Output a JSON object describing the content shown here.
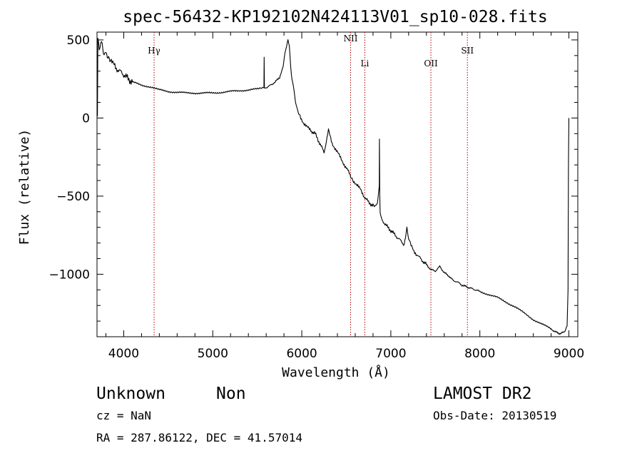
{
  "chart_data": {
    "type": "line",
    "title": "spec-56432-KP192102N424113V01_sp10-028.fits",
    "xlabel": "Wavelength (Å)",
    "ylabel": "Flux (relative)",
    "xlim": [
      3700,
      9100
    ],
    "ylim": [
      -1400,
      550
    ],
    "x_ticks": [
      4000,
      5000,
      6000,
      7000,
      8000,
      9000
    ],
    "x_tick_labels": [
      "4000",
      "5000",
      "6000",
      "7000",
      "8000",
      "9000"
    ],
    "y_ticks": [
      500,
      0,
      -500,
      -1000
    ],
    "y_tick_labels": [
      "500",
      "0",
      "−500",
      "−1000"
    ],
    "grid": false,
    "series": [
      {
        "x": [
          3705,
          3710,
          3725,
          3750,
          3780,
          3800,
          3830,
          3860,
          3900,
          3950,
          4000,
          4050,
          4100,
          4200,
          4300,
          4400,
          4500,
          4600,
          4700,
          4800,
          4900,
          5000,
          5100,
          5200,
          5300,
          5400,
          5500,
          5560,
          5575,
          5577,
          5580,
          5600,
          5650,
          5700,
          5750,
          5790,
          5810,
          5830,
          5845,
          5860,
          5875,
          5890,
          5910,
          5930,
          5950,
          5980,
          6020,
          6060,
          6100,
          6150,
          6200,
          6250,
          6300,
          6340,
          6380,
          6420,
          6460,
          6500,
          6550,
          6580,
          6620,
          6660,
          6700,
          6750,
          6800,
          6830,
          6850,
          6870,
          6872,
          6874,
          6876,
          6880,
          6900,
          6950,
          7000,
          7050,
          7100,
          7150,
          7180,
          7200,
          7220,
          7260,
          7300,
          7350,
          7400,
          7450,
          7500,
          7550,
          7600,
          7650,
          7700,
          7750,
          7800,
          7850,
          7900,
          7950,
          8000,
          8100,
          8200,
          8300,
          8400,
          8500,
          8600,
          8700,
          8800,
          8850,
          8900,
          8950,
          8980,
          8990,
          8995,
          9000
        ],
        "y": [
          -10,
          520,
          430,
          480,
          390,
          410,
          380,
          360,
          330,
          300,
          280,
          250,
          230,
          210,
          200,
          180,
          170,
          165,
          160,
          160,
          160,
          160,
          165,
          170,
          175,
          180,
          185,
          190,
          195,
          390,
          190,
          195,
          210,
          230,
          260,
          330,
          420,
          460,
          500,
          460,
          330,
          240,
          180,
          100,
          50,
          10,
          -30,
          -60,
          -80,
          -100,
          -160,
          -220,
          -80,
          -160,
          -200,
          -240,
          -280,
          -320,
          -370,
          -400,
          -430,
          -460,
          -500,
          -540,
          -560,
          -570,
          -540,
          -440,
          -130,
          -330,
          -510,
          -600,
          -650,
          -690,
          -720,
          -750,
          -780,
          -810,
          -700,
          -780,
          -810,
          -850,
          -880,
          -910,
          -940,
          -970,
          -980,
          -950,
          -990,
          -1010,
          -1040,
          -1050,
          -1070,
          -1080,
          -1090,
          -1100,
          -1110,
          -1130,
          -1150,
          -1180,
          -1210,
          -1250,
          -1290,
          -1320,
          -1350,
          -1370,
          -1380,
          -1370,
          -1330,
          -1100,
          -300,
          0
        ]
      }
    ],
    "line_markers": [
      {
        "label": "Hγ",
        "x": 4341
      },
      {
        "label": "NII",
        "x": 6548
      },
      {
        "label": "Li",
        "x": 6708
      },
      {
        "label": "OII",
        "x": 7450
      },
      {
        "label": "SII",
        "x": 7860
      }
    ]
  },
  "footer": {
    "object_type": "Unknown",
    "subclass": "Non",
    "survey": "LAMOST DR2",
    "cz": "cz = NaN",
    "obs_date": "Obs-Date: 20130519",
    "coords": "RA = 287.86122, DEC =  41.57014"
  }
}
